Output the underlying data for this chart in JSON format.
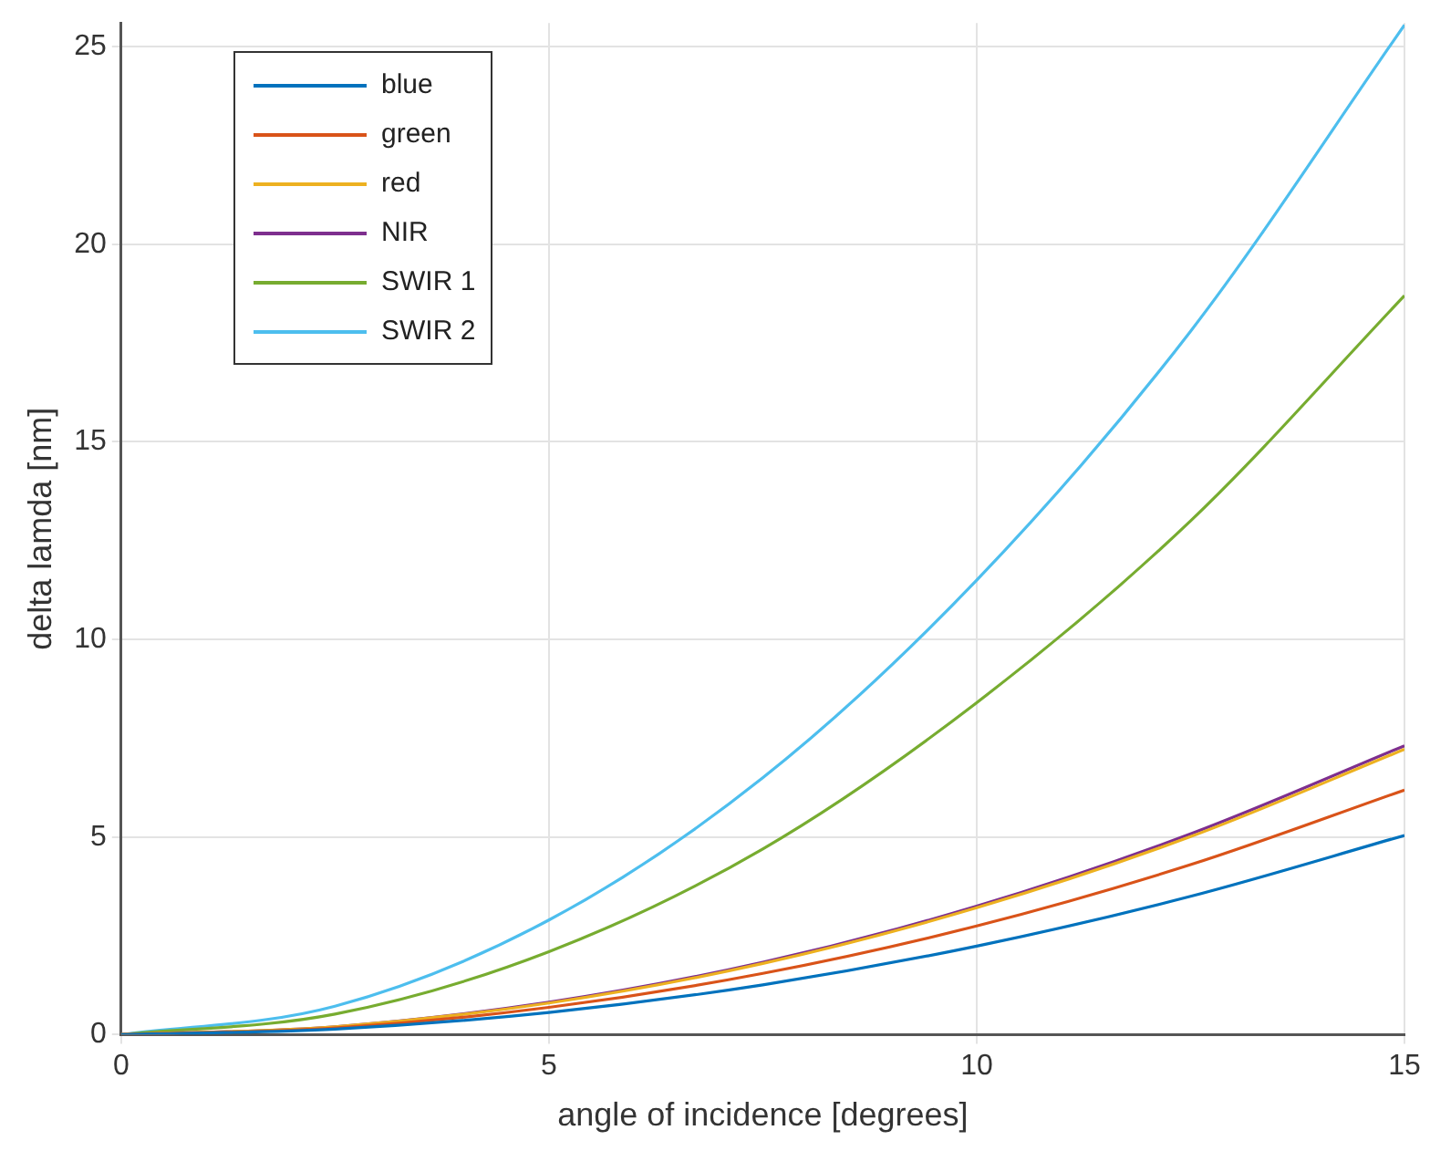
{
  "chart_data": {
    "type": "line",
    "xlabel": "angle of incidence [degrees]",
    "ylabel": "delta lamda [nm]",
    "x": [
      0,
      2.5,
      5,
      7.5,
      10,
      12.5,
      15
    ],
    "series": [
      {
        "name": "blue",
        "color": "#0072bd",
        "values": [
          0,
          0.14,
          0.56,
          1.26,
          2.24,
          3.5,
          5.04
        ]
      },
      {
        "name": "green",
        "color": "#d95319",
        "values": [
          0,
          0.17,
          0.69,
          1.55,
          2.75,
          4.3,
          6.19
        ]
      },
      {
        "name": "red",
        "color": "#edb120",
        "values": [
          0,
          0.2,
          0.8,
          1.8,
          3.21,
          5.01,
          7.22
        ]
      },
      {
        "name": "NIR",
        "color": "#7e2f8e",
        "values": [
          0,
          0.2,
          0.82,
          1.83,
          3.25,
          5.08,
          7.31
        ]
      },
      {
        "name": "SWIR 1",
        "color": "#77ac30",
        "values": [
          0,
          0.52,
          2.1,
          4.7,
          8.4,
          13.0,
          18.7
        ]
      },
      {
        "name": "SWIR 2",
        "color": "#4dbeee",
        "values": [
          0,
          0.72,
          2.9,
          6.5,
          11.5,
          17.8,
          25.55
        ]
      }
    ],
    "xlim": [
      0,
      15
    ],
    "xticks": [
      0,
      5,
      10,
      15
    ],
    "ylim": [
      0,
      25.6
    ],
    "yticks": [
      0,
      5,
      10,
      15,
      20,
      25
    ],
    "grid": true,
    "legend": "top left",
    "marker": "none",
    "line_style": "solid"
  }
}
